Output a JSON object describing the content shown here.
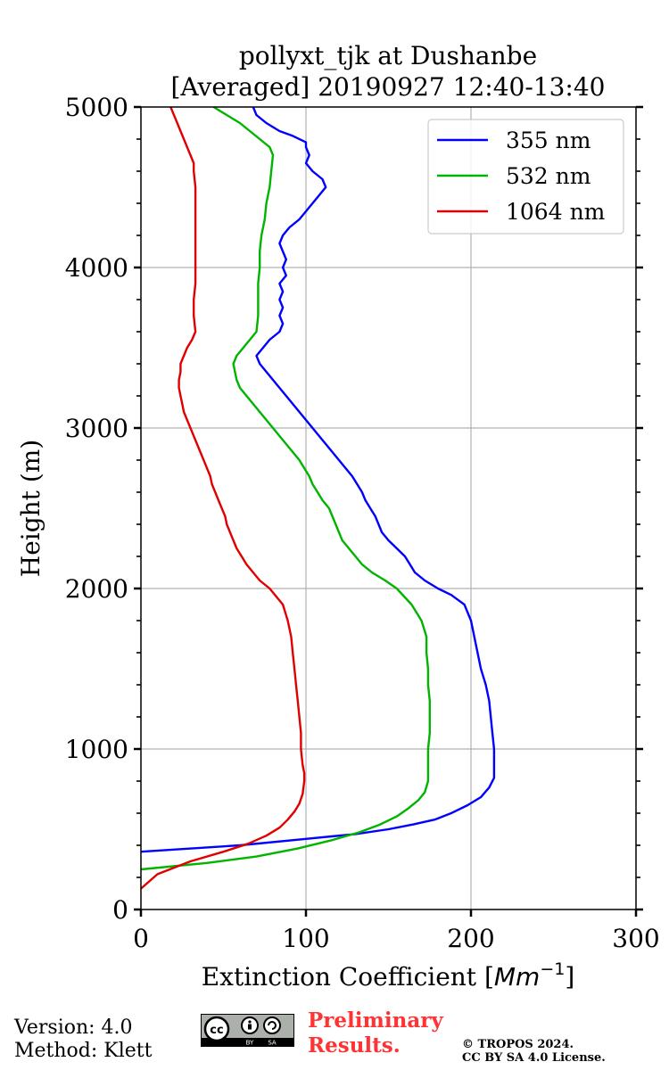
{
  "chart_data": {
    "type": "line",
    "title_line1": "pollyxt_tjk at Dushanbe",
    "title_line2": "[Averaged] 20190927 12:40-13:40",
    "xlabel_text": "Extinction Coefficient [",
    "xlabel_unit_base": "Mm",
    "xlabel_unit_exp": "−1",
    "xlabel_close": "]",
    "ylabel": "Height (m)",
    "xlim": [
      0,
      300
    ],
    "ylim": [
      0,
      5000
    ],
    "xticks": [
      0,
      100,
      200,
      300
    ],
    "yticks": [
      0,
      1000,
      2000,
      3000,
      4000,
      5000
    ],
    "grid": true,
    "legend_position": "top-right",
    "series": [
      {
        "name": "355 nm",
        "color": "#0000ff",
        "points": [
          [
            0,
            360
          ],
          [
            60,
            400
          ],
          [
            100,
            440
          ],
          [
            130,
            470
          ],
          [
            150,
            500
          ],
          [
            165,
            530
          ],
          [
            178,
            560
          ],
          [
            188,
            600
          ],
          [
            198,
            650
          ],
          [
            206,
            700
          ],
          [
            211,
            760
          ],
          [
            214,
            820
          ],
          [
            214,
            900
          ],
          [
            214,
            1000
          ],
          [
            213,
            1100
          ],
          [
            212,
            1200
          ],
          [
            211,
            1300
          ],
          [
            209,
            1400
          ],
          [
            206,
            1500
          ],
          [
            204,
            1600
          ],
          [
            202,
            1700
          ],
          [
            200,
            1800
          ],
          [
            196,
            1900
          ],
          [
            188,
            1960
          ],
          [
            180,
            2000
          ],
          [
            172,
            2050
          ],
          [
            166,
            2100
          ],
          [
            163,
            2150
          ],
          [
            160,
            2200
          ],
          [
            155,
            2250
          ],
          [
            150,
            2300
          ],
          [
            146,
            2350
          ],
          [
            144,
            2400
          ],
          [
            142,
            2450
          ],
          [
            139,
            2500
          ],
          [
            136,
            2550
          ],
          [
            134,
            2600
          ],
          [
            131,
            2650
          ],
          [
            128,
            2700
          ],
          [
            124,
            2750
          ],
          [
            120,
            2800
          ],
          [
            116,
            2850
          ],
          [
            112,
            2900
          ],
          [
            108,
            2950
          ],
          [
            104,
            3000
          ],
          [
            100,
            3050
          ],
          [
            96,
            3100
          ],
          [
            92,
            3150
          ],
          [
            88,
            3200
          ],
          [
            84,
            3250
          ],
          [
            80,
            3300
          ],
          [
            76,
            3350
          ],
          [
            72,
            3400
          ],
          [
            70,
            3450
          ],
          [
            74,
            3500
          ],
          [
            78,
            3550
          ],
          [
            84,
            3600
          ],
          [
            86,
            3650
          ],
          [
            84,
            3700
          ],
          [
            86,
            3750
          ],
          [
            84,
            3800
          ],
          [
            86,
            3850
          ],
          [
            84,
            3900
          ],
          [
            88,
            3950
          ],
          [
            86,
            4000
          ],
          [
            88,
            4050
          ],
          [
            86,
            4100
          ],
          [
            84,
            4150
          ],
          [
            86,
            4200
          ],
          [
            90,
            4250
          ],
          [
            96,
            4300
          ],
          [
            100,
            4350
          ],
          [
            104,
            4400
          ],
          [
            108,
            4450
          ],
          [
            112,
            4500
          ],
          [
            110,
            4550
          ],
          [
            104,
            4600
          ],
          [
            100,
            4650
          ],
          [
            102,
            4700
          ],
          [
            100,
            4750
          ],
          [
            100,
            4780
          ],
          [
            92,
            4820
          ],
          [
            84,
            4850
          ],
          [
            76,
            4900
          ],
          [
            70,
            4950
          ],
          [
            68,
            5000
          ]
        ]
      },
      {
        "name": "532 nm",
        "color": "#00b400",
        "points": [
          [
            0,
            250
          ],
          [
            40,
            290
          ],
          [
            70,
            330
          ],
          [
            95,
            380
          ],
          [
            115,
            430
          ],
          [
            132,
            480
          ],
          [
            145,
            530
          ],
          [
            155,
            580
          ],
          [
            162,
            630
          ],
          [
            168,
            680
          ],
          [
            172,
            730
          ],
          [
            174,
            800
          ],
          [
            174,
            900
          ],
          [
            174,
            1000
          ],
          [
            175,
            1100
          ],
          [
            175,
            1200
          ],
          [
            175,
            1300
          ],
          [
            174,
            1400
          ],
          [
            174,
            1500
          ],
          [
            173,
            1600
          ],
          [
            173,
            1700
          ],
          [
            170,
            1800
          ],
          [
            164,
            1900
          ],
          [
            155,
            2000
          ],
          [
            148,
            2050
          ],
          [
            140,
            2100
          ],
          [
            134,
            2150
          ],
          [
            130,
            2200
          ],
          [
            126,
            2250
          ],
          [
            122,
            2300
          ],
          [
            120,
            2350
          ],
          [
            118,
            2400
          ],
          [
            116,
            2450
          ],
          [
            114,
            2500
          ],
          [
            110,
            2550
          ],
          [
            107,
            2600
          ],
          [
            104,
            2650
          ],
          [
            102,
            2700
          ],
          [
            99,
            2750
          ],
          [
            96,
            2800
          ],
          [
            92,
            2850
          ],
          [
            88,
            2900
          ],
          [
            84,
            2950
          ],
          [
            80,
            3000
          ],
          [
            76,
            3050
          ],
          [
            72,
            3100
          ],
          [
            68,
            3150
          ],
          [
            64,
            3200
          ],
          [
            60,
            3250
          ],
          [
            58,
            3300
          ],
          [
            57,
            3350
          ],
          [
            56,
            3400
          ],
          [
            58,
            3450
          ],
          [
            62,
            3500
          ],
          [
            66,
            3550
          ],
          [
            70,
            3600
          ],
          [
            71,
            3700
          ],
          [
            71,
            3800
          ],
          [
            71,
            3900
          ],
          [
            72,
            4000
          ],
          [
            72,
            4100
          ],
          [
            73,
            4200
          ],
          [
            75,
            4300
          ],
          [
            76,
            4400
          ],
          [
            78,
            4500
          ],
          [
            79,
            4600
          ],
          [
            80,
            4700
          ],
          [
            78,
            4750
          ],
          [
            72,
            4800
          ],
          [
            66,
            4850
          ],
          [
            60,
            4900
          ],
          [
            52,
            4950
          ],
          [
            44,
            5000
          ]
        ]
      },
      {
        "name": "1064 nm",
        "color": "#e00000",
        "points": [
          [
            0,
            130
          ],
          [
            10,
            220
          ],
          [
            30,
            300
          ],
          [
            50,
            360
          ],
          [
            65,
            410
          ],
          [
            76,
            460
          ],
          [
            84,
            510
          ],
          [
            89,
            560
          ],
          [
            93,
            610
          ],
          [
            96,
            660
          ],
          [
            98,
            720
          ],
          [
            99,
            800
          ],
          [
            99,
            850
          ],
          [
            98,
            900
          ],
          [
            97,
            1000
          ],
          [
            97,
            1100
          ],
          [
            96,
            1200
          ],
          [
            95,
            1300
          ],
          [
            94,
            1400
          ],
          [
            93,
            1500
          ],
          [
            92,
            1600
          ],
          [
            91,
            1700
          ],
          [
            89,
            1800
          ],
          [
            86,
            1900
          ],
          [
            82,
            1950
          ],
          [
            78,
            2000
          ],
          [
            72,
            2050
          ],
          [
            68,
            2100
          ],
          [
            64,
            2150
          ],
          [
            61,
            2200
          ],
          [
            58,
            2250
          ],
          [
            56,
            2300
          ],
          [
            54,
            2350
          ],
          [
            52,
            2400
          ],
          [
            51,
            2450
          ],
          [
            49,
            2500
          ],
          [
            47,
            2550
          ],
          [
            45,
            2600
          ],
          [
            43,
            2650
          ],
          [
            42,
            2700
          ],
          [
            40,
            2750
          ],
          [
            38,
            2800
          ],
          [
            36,
            2850
          ],
          [
            34,
            2900
          ],
          [
            32,
            2950
          ],
          [
            30,
            3000
          ],
          [
            28,
            3050
          ],
          [
            26,
            3100
          ],
          [
            25,
            3150
          ],
          [
            24,
            3200
          ],
          [
            23,
            3250
          ],
          [
            23,
            3300
          ],
          [
            24,
            3350
          ],
          [
            24,
            3400
          ],
          [
            26,
            3450
          ],
          [
            28,
            3500
          ],
          [
            31,
            3550
          ],
          [
            33,
            3600
          ],
          [
            32,
            3700
          ],
          [
            32,
            3800
          ],
          [
            33,
            3900
          ],
          [
            33,
            4000
          ],
          [
            33,
            4100
          ],
          [
            33,
            4200
          ],
          [
            33,
            4300
          ],
          [
            33,
            4400
          ],
          [
            33,
            4500
          ],
          [
            32,
            4600
          ],
          [
            32,
            4650
          ],
          [
            30,
            4700
          ],
          [
            28,
            4750
          ],
          [
            26,
            4800
          ],
          [
            24,
            4850
          ],
          [
            22,
            4900
          ],
          [
            20,
            4950
          ],
          [
            18,
            5000
          ]
        ]
      }
    ]
  },
  "footer": {
    "version": "Version: 4.0",
    "method": "Method: Klett",
    "preliminary_line1": "Preliminary",
    "preliminary_line2": "Results.",
    "copyright_line1": "© TROPOS 2024.",
    "copyright_line2": "CC BY SA 4.0 License.",
    "license_badge": {
      "cc": "cc",
      "by": "BY",
      "sa": "SA"
    }
  }
}
